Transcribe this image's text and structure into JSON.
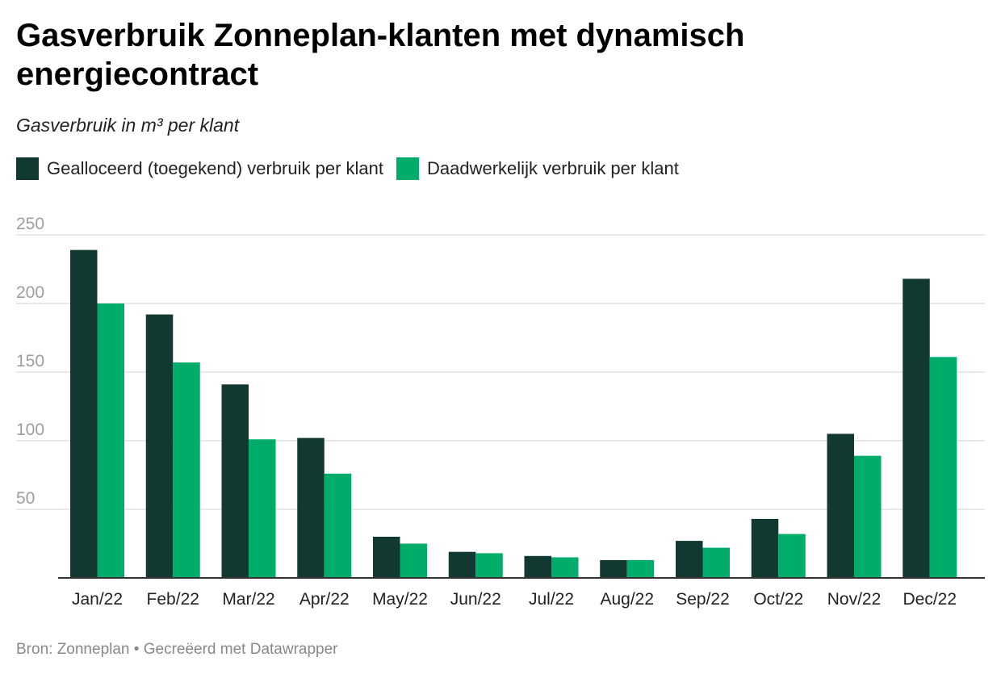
{
  "title": "Gasverbruik Zonneplan-klanten met dynamisch energiecontract",
  "subtitle": "Gasverbruik in m³ per klant",
  "footer": {
    "source": "Bron: Zonneplan",
    "separator": "•",
    "credit": "Gecreëerd met Datawrapper"
  },
  "colors": {
    "allocated": "#113831",
    "actual": "#00ac69",
    "grid": "#e0e0e0",
    "ytick": "#9e9e9e",
    "baseline": "#333333"
  },
  "chart_data": {
    "type": "bar",
    "title": "Gasverbruik Zonneplan-klanten met dynamisch energiecontract",
    "subtitle": "Gasverbruik in m³ per klant",
    "xlabel": "",
    "ylabel": "",
    "ylim": [
      0,
      250
    ],
    "yticks": [
      50,
      100,
      150,
      200,
      250
    ],
    "grid": true,
    "legend_position": "top-left",
    "categories": [
      "Jan/22",
      "Feb/22",
      "Mar/22",
      "Apr/22",
      "May/22",
      "Jun/22",
      "Jul/22",
      "Aug/22",
      "Sep/22",
      "Oct/22",
      "Nov/22",
      "Dec/22"
    ],
    "series": [
      {
        "name": "Gealloceerd (toegekend) verbruik per klant",
        "values": [
          239,
          192,
          141,
          102,
          30,
          19,
          16,
          13,
          27,
          43,
          105,
          218
        ]
      },
      {
        "name": "Daadwerkelijk verbruik per klant",
        "values": [
          200,
          157,
          101,
          76,
          25,
          18,
          15,
          13,
          22,
          32,
          89,
          161
        ]
      }
    ]
  }
}
